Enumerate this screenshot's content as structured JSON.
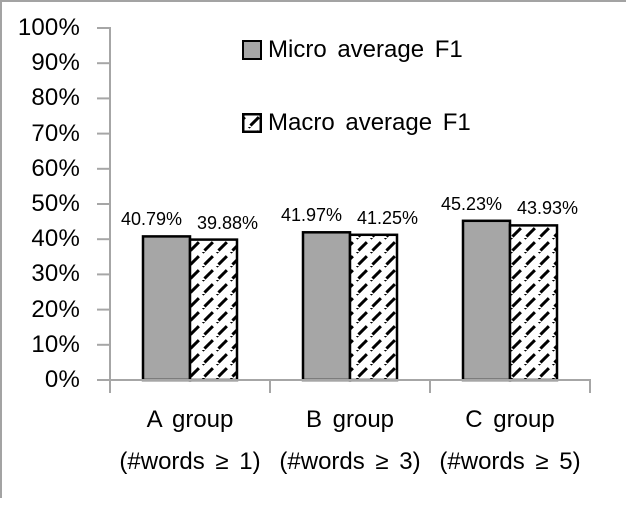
{
  "chart_data": {
    "type": "bar",
    "title": "",
    "categories": [
      "A group",
      "B group",
      "C group"
    ],
    "category_sublabels": [
      "(#words ≥ 1)",
      "(#words ≥ 3)",
      "(#words ≥ 5)"
    ],
    "series": [
      {
        "name": "Micro average F1",
        "values": [
          40.79,
          41.97,
          45.23
        ],
        "value_labels": [
          "40.79%",
          "41.97%",
          "45.23%"
        ],
        "style": "solid-gray"
      },
      {
        "name": "Macro average F1",
        "values": [
          39.88,
          41.25,
          43.93
        ],
        "value_labels": [
          "39.88%",
          "41.25%",
          "43.93%"
        ],
        "style": "diagonal-hatch"
      }
    ],
    "y_axis": {
      "min": 0,
      "max": 100,
      "tick_step": 10,
      "tick_labels": [
        "100%",
        "90%",
        "80%",
        "70%",
        "60%",
        "50%",
        "40%",
        "30%",
        "20%",
        "10%",
        "0%"
      ]
    },
    "x_axis": {
      "label": ""
    },
    "grid": false,
    "legend_position": "top-center-inside",
    "colors": {
      "bar_fill": "#a6a6a6",
      "bar_border": "#000000",
      "hatch_bg": "#ffffff",
      "hatch_fg": "#000000",
      "axis": "#a6a6a6",
      "text": "#000000",
      "frame_border": "#a3a3a3"
    }
  },
  "legend": {
    "items": [
      {
        "label": "Micro average F1"
      },
      {
        "label": "Macro average F1"
      }
    ]
  }
}
